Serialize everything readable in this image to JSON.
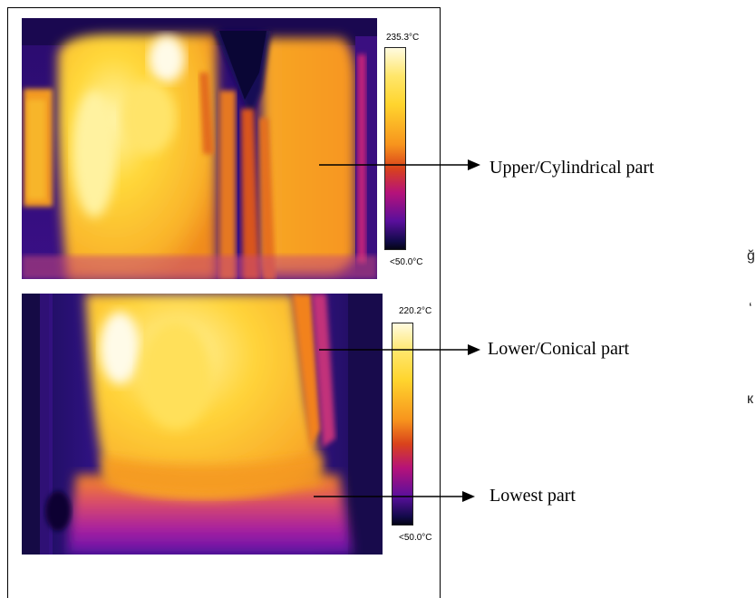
{
  "images": [
    {
      "scale_max": "235.3°C",
      "scale_min": "<50.0°C",
      "label": "Upper/Cylindrical part"
    },
    {
      "scale_max": "220.2°C",
      "scale_min": "<50.0°C",
      "labels": [
        "Lower/Conical part",
        "Lowest part"
      ]
    }
  ],
  "edge_glyphs": [
    "ğ",
    "‘",
    "к"
  ],
  "palette": {
    "white_hot": "#fffbe0",
    "yellow": "#ffd52e",
    "orange": "#f7941d",
    "red_orange": "#d9421c",
    "magenta": "#b5127a",
    "purple": "#5a0f9c",
    "dark_blue": "#120a4a",
    "black": "#050515"
  }
}
